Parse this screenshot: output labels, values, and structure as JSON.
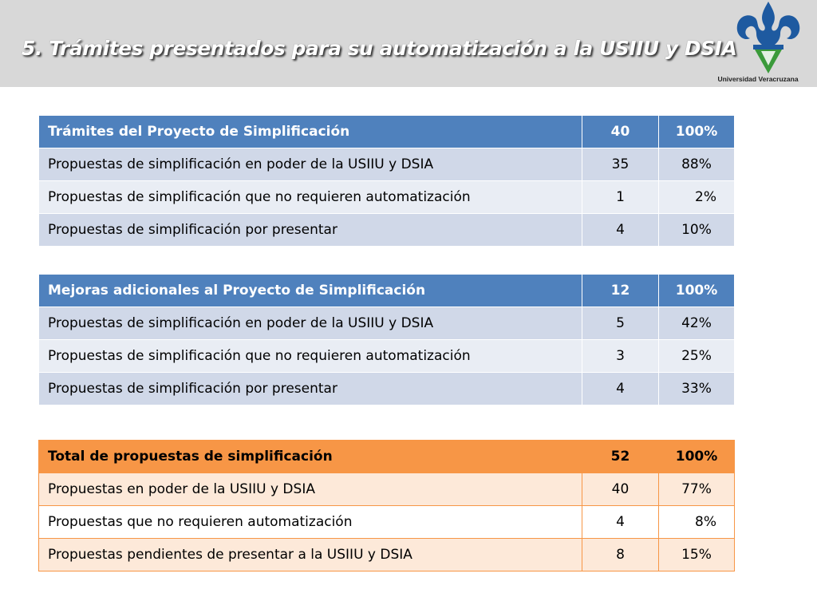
{
  "slide": {
    "title": "5. Trámites presentados para su automatización a la USIIU y DSIA",
    "logo_caption": "Universidad Veracruzana",
    "brand_colors": {
      "logo_blue": "#1e5aa0",
      "logo_green": "#3a9a3a",
      "header_band": "#d8d8d8"
    }
  },
  "tables": [
    {
      "header": {
        "label": "Trámites  del Proyecto de Simplificación",
        "count": "40",
        "percent": "100%"
      },
      "rows": [
        {
          "label": "Propuestas de simplificación en poder de la USIIU y DSIA",
          "count": "35",
          "percent": "88%"
        },
        {
          "label": "Propuestas de simplificación que no requieren automatización",
          "count": "1",
          "percent": "2%"
        },
        {
          "label": "Propuestas de simplificación por presentar",
          "count": "4",
          "percent": "10%"
        }
      ]
    },
    {
      "header": {
        "label": "Mejoras adicionales al Proyecto de Simplificación",
        "count": "12",
        "percent": "100%"
      },
      "rows": [
        {
          "label": "Propuestas de simplificación en poder de la USIIU y DSIA",
          "count": "5",
          "percent": "42%"
        },
        {
          "label": "Propuestas de simplificación que no requieren automatización",
          "count": "3",
          "percent": "25%"
        },
        {
          "label": "Propuestas de simplificación por presentar",
          "count": "4",
          "percent": "33%"
        }
      ]
    },
    {
      "header": {
        "label": "Total de propuestas de simplificación",
        "count": "52",
        "percent": "100%"
      },
      "rows": [
        {
          "label": "Propuestas en poder de la USIIU y DSIA",
          "count": "40",
          "percent": "77%"
        },
        {
          "label": "Propuestas que no requieren automatización",
          "count": "4",
          "percent": "8%"
        },
        {
          "label": "Propuestas pendientes de presentar a la USIIU y DSIA",
          "count": "8",
          "percent": "15%"
        }
      ]
    }
  ]
}
